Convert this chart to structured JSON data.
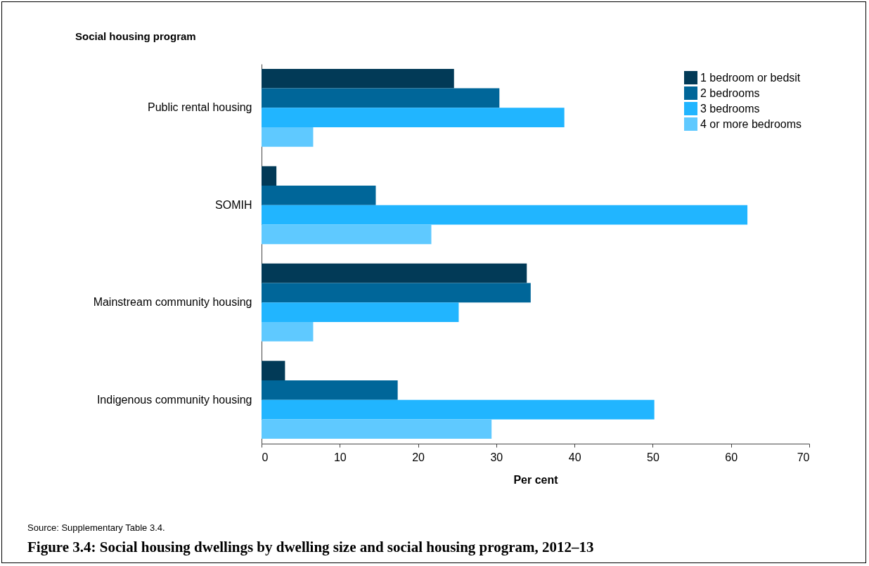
{
  "chart_data": {
    "type": "bar",
    "orientation": "horizontal",
    "title": "Figure 3.4: Social housing dwellings by dwelling size and social housing program, 2012–13",
    "ylabel": "Social housing program",
    "xlabel": "Per cent",
    "categories": [
      "Public rental housing",
      "SOMIH",
      "Mainstream community housing",
      "Indigenous community housing"
    ],
    "series": [
      {
        "name": "1 bedroom or bedsit",
        "color": "#023a57",
        "values": [
          24.6,
          1.9,
          33.9,
          3.0
        ]
      },
      {
        "name": "2 bedrooms",
        "color": "#006699",
        "values": [
          30.4,
          14.6,
          34.4,
          17.4
        ]
      },
      {
        "name": "3 bedrooms",
        "color": "#21b5ff",
        "values": [
          38.7,
          62.1,
          25.2,
          50.2
        ]
      },
      {
        "name": "4 or more bedrooms",
        "color": "#5fc9ff",
        "values": [
          6.6,
          21.7,
          6.6,
          29.4
        ]
      }
    ],
    "xlim": [
      0,
      70
    ],
    "xticks": [
      0,
      10,
      20,
      30,
      40,
      50,
      60,
      70
    ],
    "legend": "top right",
    "annotations": [
      "Source: Supplementary Table 3.4."
    ]
  }
}
